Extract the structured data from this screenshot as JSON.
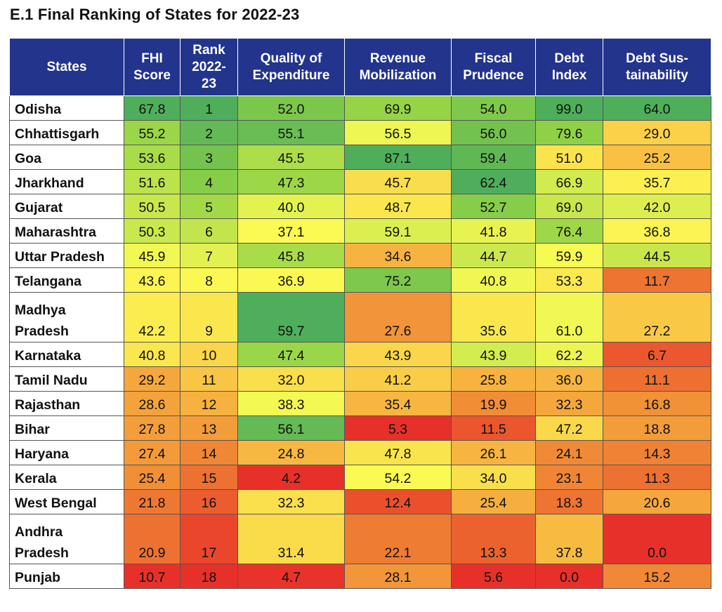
{
  "title": "E.1 Final Ranking of States for 2022-23",
  "chart_data": {
    "type": "table",
    "title": "E.1 Final Ranking of States for 2022-23",
    "columns": [
      "States",
      "FHI Score",
      "Rank 2022-23",
      "Quality of Expenditure",
      "Revenue Mobilization",
      "Fiscal Prudence",
      "Debt Index",
      "Debt Sustainability"
    ],
    "header_lines": [
      [
        "States"
      ],
      [
        "FHI",
        "Score"
      ],
      [
        "Rank",
        "2022-",
        "23"
      ],
      [
        "Quality of",
        "Expenditure"
      ],
      [
        "Revenue",
        "Mobilization"
      ],
      [
        "Fiscal",
        "Prudence"
      ],
      [
        "Debt",
        "Index"
      ],
      [
        "Debt Sus-",
        "tainability"
      ]
    ],
    "rows": [
      {
        "state": "Odisha",
        "values": [
          "67.8",
          "1",
          "52.0",
          "69.9",
          "54.0",
          "99.0",
          "64.0"
        ]
      },
      {
        "state": "Chhattisgarh",
        "values": [
          "55.2",
          "2",
          "55.1",
          "56.5",
          "56.0",
          "79.6",
          "29.0"
        ]
      },
      {
        "state": "Goa",
        "values": [
          "53.6",
          "3",
          "45.5",
          "87.1",
          "59.4",
          "51.0",
          "25.2"
        ]
      },
      {
        "state": "Jharkhand",
        "values": [
          "51.6",
          "4",
          "47.3",
          "45.7",
          "62.4",
          "66.9",
          "35.7"
        ]
      },
      {
        "state": "Gujarat",
        "values": [
          "50.5",
          "5",
          "40.0",
          "48.7",
          "52.7",
          "69.0",
          "42.0"
        ]
      },
      {
        "state": "Maharashtra",
        "values": [
          "50.3",
          "6",
          "37.1",
          "59.1",
          "41.8",
          "76.4",
          "36.8"
        ]
      },
      {
        "state": "Uttar Pradesh",
        "values": [
          "45.9",
          "7",
          "45.8",
          "34.6",
          "44.7",
          "59.9",
          "44.5"
        ]
      },
      {
        "state": "Telangana",
        "values": [
          "43.6",
          "8",
          "36.9",
          "75.2",
          "40.8",
          "53.3",
          "11.7"
        ]
      },
      {
        "state": "Madhya Pradesh",
        "lines": [
          "Madhya",
          "Pradesh"
        ],
        "values": [
          "42.2",
          "9",
          "59.7",
          "27.6",
          "35.6",
          "61.0",
          "27.2"
        ]
      },
      {
        "state": "Karnataka",
        "values": [
          "40.8",
          "10",
          "47.4",
          "43.9",
          "43.9",
          "62.2",
          "6.7"
        ]
      },
      {
        "state": "Tamil Nadu",
        "values": [
          "29.2",
          "11",
          "32.0",
          "41.2",
          "25.8",
          "36.0",
          "11.1"
        ]
      },
      {
        "state": "Rajasthan",
        "values": [
          "28.6",
          "12",
          "38.3",
          "35.4",
          "19.9",
          "32.3",
          "16.8"
        ]
      },
      {
        "state": "Bihar",
        "values": [
          "27.8",
          "13",
          "56.1",
          "5.3",
          "11.5",
          "47.2",
          "18.8"
        ]
      },
      {
        "state": "Haryana",
        "values": [
          "27.4",
          "14",
          "24.8",
          "47.8",
          "26.1",
          "24.1",
          "14.3"
        ]
      },
      {
        "state": "Kerala",
        "values": [
          "25.4",
          "15",
          "4.2",
          "54.2",
          "34.0",
          "23.1",
          "11.3"
        ]
      },
      {
        "state": "West Bengal",
        "values": [
          "21.8",
          "16",
          "32.3",
          "12.4",
          "25.4",
          "18.3",
          "20.6"
        ]
      },
      {
        "state": "Andhra Pradesh",
        "lines": [
          "Andhra",
          "Pradesh"
        ],
        "values": [
          "20.9",
          "17",
          "31.4",
          "22.1",
          "13.3",
          "37.8",
          "0.0"
        ]
      },
      {
        "state": "Punjab",
        "values": [
          "10.7",
          "18",
          "4.7",
          "28.1",
          "5.6",
          "0.0",
          "15.2"
        ]
      }
    ],
    "colors": {
      "header_bg": "#23348c",
      "header_text": "#ffffff",
      "scale": [
        "#e8302a",
        "#ee7a32",
        "#f9c244",
        "#fbfb54",
        "#8fd246",
        "#4fae5b"
      ]
    }
  }
}
